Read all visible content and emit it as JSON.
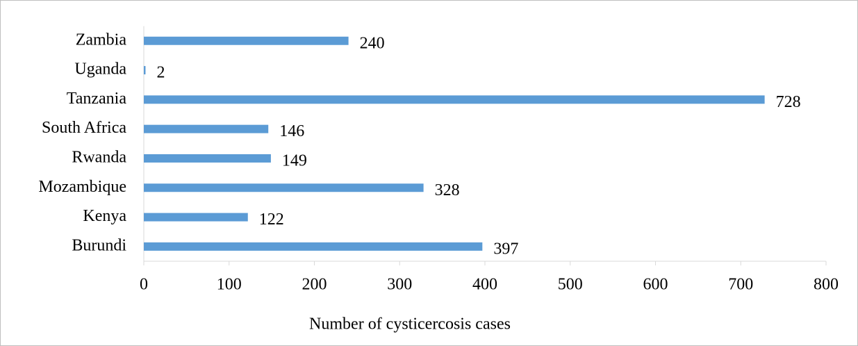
{
  "chart_data": {
    "type": "bar",
    "orientation": "horizontal",
    "x_label": "Number of cysticercosis cases",
    "categories": [
      "Burundi",
      "Kenya",
      "Mozambique",
      "Rwanda",
      "South Africa",
      "Tanzania",
      "Uganda",
      "Zambia"
    ],
    "values": [
      397,
      122,
      328,
      149,
      146,
      728,
      2,
      240
    ],
    "color": "#5b9bd5",
    "xlim": [
      0,
      800
    ],
    "xticks": [
      0,
      100,
      200,
      300,
      400,
      500,
      600,
      700,
      800
    ],
    "grid": false
  }
}
